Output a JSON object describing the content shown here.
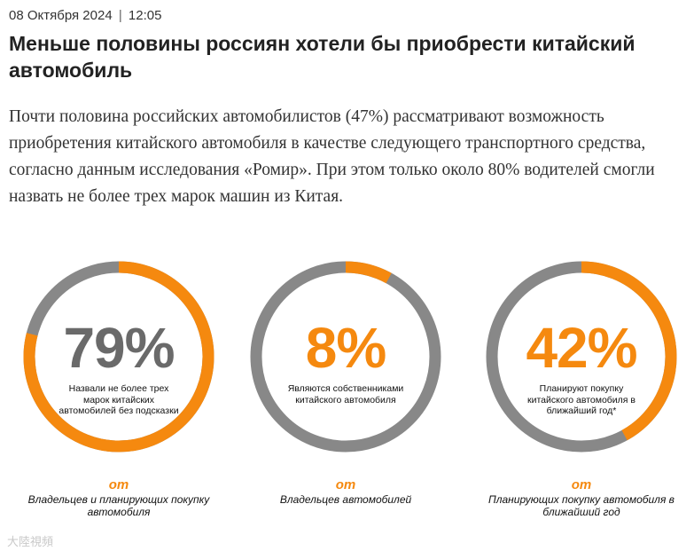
{
  "article": {
    "date": "08 Октября 2024",
    "separator": "|",
    "time": "12:05",
    "headline": "Меньше половины россиян хотели бы приобрести китайский автомобиль",
    "lead": "Почти половина российских автомобилистов (47%) рассматривают возможность приобретения китайского автомобиля в качестве следующего транспортного средства, согласно данным исследования «Ромир». При этом только около 80% водителей смогли назвать не более трех марок машин из Китая."
  },
  "colors": {
    "accent": "#f5890f",
    "track": "#888888",
    "dark": "#6a6a6a"
  },
  "infographic": {
    "stats": [
      {
        "value": "79%",
        "fraction": 0.79,
        "description": "Назвали не более трех марок китайских автомобилей без подсказки",
        "of": "от",
        "base": "Владельцев и планирующих покупку автомобиля"
      },
      {
        "value": "8%",
        "fraction": 0.08,
        "description": "Являются собственниками китайского автомобиля",
        "of": "от",
        "base": "Владельцев автомобилей"
      },
      {
        "value": "42%",
        "fraction": 0.42,
        "description": "Планируют покупку китайского автомобиля в ближайший год*",
        "of": "от",
        "base": "Планирующих покупку автомобиля в ближайший год"
      }
    ]
  },
  "watermark": "大陸視頻"
}
